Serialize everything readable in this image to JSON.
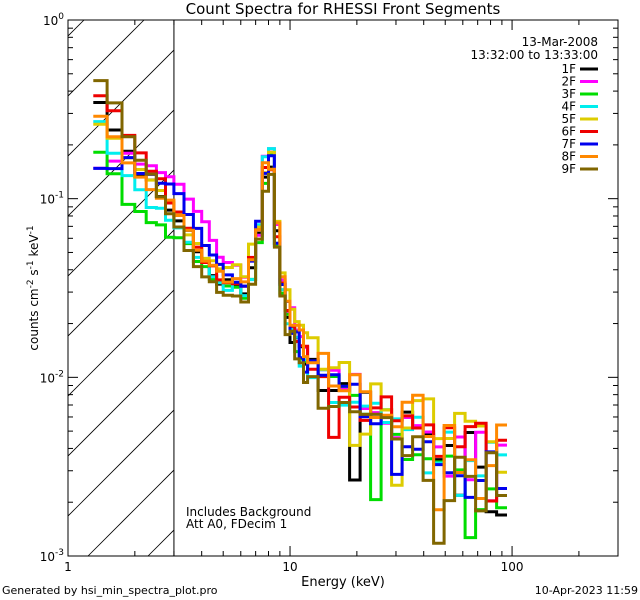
{
  "chart_data": {
    "type": "line",
    "title": "Count Spectra for RHESSI Front Segments",
    "xlabel": "Energy (keV)",
    "ylabel_parts": [
      "counts cm",
      "-2",
      " s",
      "-1",
      " keV",
      "-1"
    ],
    "xscale": "log",
    "yscale": "log",
    "xlim": [
      1,
      300
    ],
    "ylim": [
      0.001,
      1
    ],
    "x_tick_labels": [
      "1",
      "10",
      "100"
    ],
    "x_tick_values": [
      1,
      10,
      100
    ],
    "y_tick_labels": [
      {
        "base": "10",
        "exp": "-3",
        "value": 0.001
      },
      {
        "base": "10",
        "exp": "-2",
        "value": 0.01
      },
      {
        "base": "10",
        "exp": "-1",
        "value": 0.1
      },
      {
        "base": "10",
        "exp": "0",
        "value": 1
      }
    ],
    "shaded_region": {
      "from": 1,
      "to": 3,
      "style": "hatched"
    },
    "threshold_line_x": 3,
    "date": "13-Mar-2008",
    "time_range": "13:32:00 to 13:33:00",
    "legend_position": "top-right",
    "annotations": [
      "Includes Background",
      "Att A0, FDecim 1"
    ],
    "footer_left": "Generated by hsi_min_spectra_plot.pro",
    "footer_right": "10-Apr-2023 11:59",
    "series": [
      {
        "name": "1F",
        "color": "#000000",
        "values": [
          0.33,
          0.25,
          0.18,
          0.14,
          0.12,
          0.105,
          0.09,
          0.075,
          0.062,
          0.05,
          0.042,
          0.037,
          0.034,
          0.033,
          0.033,
          0.034,
          0.04,
          0.06,
          0.14,
          0.17,
          0.06,
          0.03,
          0.022,
          0.018,
          0.015,
          0.013,
          0.0115,
          0.0105,
          0.0095,
          0.0087,
          0.008,
          0.0073,
          0.0067,
          0.0062,
          0.0057,
          0.0053,
          0.005,
          0.0047,
          0.0044,
          0.0041,
          0.0039,
          0.0037,
          0.0035,
          0.0033,
          0.0031,
          0.003
        ]
      },
      {
        "name": "2F",
        "color": "#ff00ff",
        "values": [
          0.14,
          0.16,
          0.17,
          0.16,
          0.15,
          0.14,
          0.13,
          0.12,
          0.1,
          0.085,
          0.07,
          0.058,
          0.05,
          0.045,
          0.042,
          0.042,
          0.048,
          0.07,
          0.16,
          0.19,
          0.07,
          0.036,
          0.027,
          0.022,
          0.018,
          0.016,
          0.014,
          0.0125,
          0.0112,
          0.0102,
          0.0094,
          0.0087,
          0.008,
          0.0074,
          0.0069,
          0.0064,
          0.006,
          0.0056,
          0.0052,
          0.0049,
          0.0046,
          0.0043,
          0.0041,
          0.0039,
          0.0037,
          0.0035
        ]
      },
      {
        "name": "3F",
        "color": "#00dd00",
        "values": [
          0.17,
          0.13,
          0.1,
          0.085,
          0.075,
          0.07,
          0.066,
          0.06,
          0.052,
          0.045,
          0.039,
          0.035,
          0.032,
          0.031,
          0.031,
          0.032,
          0.038,
          0.057,
          0.13,
          0.16,
          0.058,
          0.03,
          0.022,
          0.018,
          0.015,
          0.013,
          0.0115,
          0.0104,
          0.0094,
          0.0086,
          0.0079,
          0.0072,
          0.0066,
          0.0061,
          0.0056,
          0.0052,
          0.0049,
          0.0046,
          0.0043,
          0.0041,
          0.0038,
          0.0036,
          0.0034,
          0.0032,
          0.003,
          0.0029
        ]
      },
      {
        "name": "4F",
        "color": "#00eeee",
        "values": [
          0.25,
          0.19,
          0.14,
          0.11,
          0.095,
          0.085,
          0.077,
          0.068,
          0.057,
          0.048,
          0.041,
          0.036,
          0.033,
          0.032,
          0.032,
          0.033,
          0.04,
          0.065,
          0.16,
          0.2,
          0.065,
          0.031,
          0.022,
          0.018,
          0.015,
          0.013,
          0.0115,
          0.0104,
          0.0094,
          0.0086,
          0.0079,
          0.0072,
          0.0066,
          0.0061,
          0.0056,
          0.0052,
          0.0049,
          0.0046,
          0.0043,
          0.0041,
          0.0038,
          0.0036,
          0.0034,
          0.0032,
          0.003,
          0.0029
        ]
      },
      {
        "name": "5F",
        "color": "#ddcc00",
        "values": [
          0.28,
          0.22,
          0.17,
          0.14,
          0.12,
          0.105,
          0.092,
          0.08,
          0.068,
          0.058,
          0.05,
          0.044,
          0.041,
          0.04,
          0.04,
          0.042,
          0.05,
          0.075,
          0.15,
          0.17,
          0.07,
          0.038,
          0.029,
          0.024,
          0.02,
          0.018,
          0.016,
          0.0145,
          0.0131,
          0.012,
          0.011,
          0.0101,
          0.0093,
          0.0086,
          0.008,
          0.0074,
          0.0069,
          0.0065,
          0.0061,
          0.0057,
          0.0054,
          0.0051,
          0.0048,
          0.0045,
          0.0043,
          0.0041
        ]
      },
      {
        "name": "6F",
        "color": "#ee0000",
        "values": [
          0.4,
          0.3,
          0.22,
          0.17,
          0.14,
          0.12,
          0.1,
          0.083,
          0.068,
          0.056,
          0.047,
          0.041,
          0.037,
          0.036,
          0.036,
          0.037,
          0.044,
          0.065,
          0.14,
          0.16,
          0.062,
          0.033,
          0.025,
          0.02,
          0.017,
          0.015,
          0.0132,
          0.0119,
          0.0107,
          0.0098,
          0.009,
          0.0083,
          0.0076,
          0.007,
          0.0065,
          0.006,
          0.0056,
          0.0053,
          0.0049,
          0.0046,
          0.0044,
          0.0041,
          0.0039,
          0.0037,
          0.0035,
          0.0033
        ]
      },
      {
        "name": "7F",
        "color": "#0000ee",
        "values": [
          0.155,
          0.16,
          0.16,
          0.15,
          0.14,
          0.13,
          0.12,
          0.105,
          0.088,
          0.072,
          0.058,
          0.047,
          0.04,
          0.037,
          0.036,
          0.037,
          0.044,
          0.066,
          0.15,
          0.17,
          0.062,
          0.032,
          0.024,
          0.019,
          0.016,
          0.014,
          0.0123,
          0.011,
          0.0099,
          0.009,
          0.0083,
          0.0076,
          0.007,
          0.0064,
          0.0059,
          0.0055,
          0.0051,
          0.0048,
          0.0045,
          0.0042,
          0.004,
          0.0037,
          0.0035,
          0.0033,
          0.0031,
          0.003
        ]
      },
      {
        "name": "8F",
        "color": "#ff8800",
        "values": [
          0.3,
          0.23,
          0.17,
          0.14,
          0.12,
          0.105,
          0.092,
          0.079,
          0.066,
          0.055,
          0.047,
          0.041,
          0.038,
          0.037,
          0.037,
          0.039,
          0.047,
          0.07,
          0.15,
          0.17,
          0.066,
          0.035,
          0.027,
          0.022,
          0.019,
          0.0165,
          0.0147,
          0.0133,
          0.012,
          0.011,
          0.0101,
          0.0093,
          0.0086,
          0.0079,
          0.0073,
          0.0068,
          0.0064,
          0.006,
          0.0056,
          0.0053,
          0.005,
          0.0047,
          0.0044,
          0.0042,
          0.004,
          0.0038
        ]
      },
      {
        "name": "9F",
        "color": "#806600",
        "values": [
          0.47,
          0.34,
          0.23,
          0.17,
          0.13,
          0.105,
          0.085,
          0.068,
          0.055,
          0.045,
          0.038,
          0.033,
          0.03,
          0.029,
          0.029,
          0.03,
          0.036,
          0.056,
          0.12,
          0.14,
          0.052,
          0.027,
          0.02,
          0.016,
          0.0135,
          0.0117,
          0.0103,
          0.0092,
          0.0083,
          0.0075,
          0.0069,
          0.0063,
          0.0058,
          0.0053,
          0.0049,
          0.0046,
          0.0043,
          0.004,
          0.0038,
          0.0035,
          0.0033,
          0.0031,
          0.0029,
          0.0028,
          0.0026,
          0.0025
        ]
      }
    ]
  }
}
